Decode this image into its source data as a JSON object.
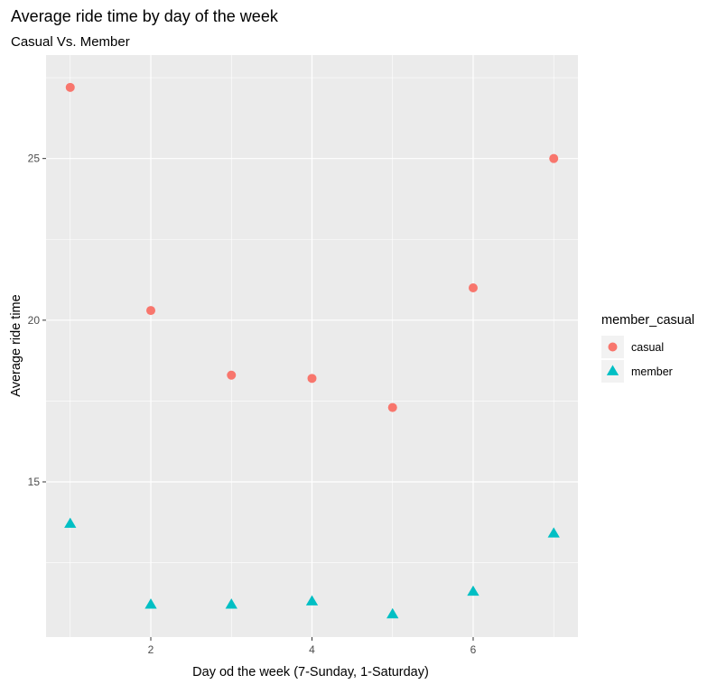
{
  "chart_data": {
    "type": "scatter",
    "title": "Average ride time by day of the week",
    "subtitle": "Casual Vs. Member",
    "xlabel": "Day od the week (7-Sunday, 1-Saturday)",
    "ylabel": "Average ride time",
    "xlim": [
      0.7,
      7.3
    ],
    "ylim": [
      10.2,
      28.2
    ],
    "x_ticks": [
      2,
      4,
      6
    ],
    "y_ticks": [
      15,
      20,
      25
    ],
    "grid": true,
    "legend": {
      "title": "member_casual",
      "position": "right"
    },
    "series": [
      {
        "name": "casual",
        "marker": "circle",
        "color": "#F8766D",
        "x": [
          1,
          2,
          3,
          4,
          5,
          6,
          7
        ],
        "y": [
          27.2,
          20.3,
          18.3,
          18.2,
          17.3,
          21.0,
          25.0
        ]
      },
      {
        "name": "member",
        "marker": "triangle",
        "color": "#00BFC4",
        "x": [
          1,
          2,
          3,
          4,
          5,
          6,
          7
        ],
        "y": [
          13.7,
          11.2,
          11.2,
          11.3,
          10.9,
          11.6,
          13.4
        ]
      }
    ]
  }
}
